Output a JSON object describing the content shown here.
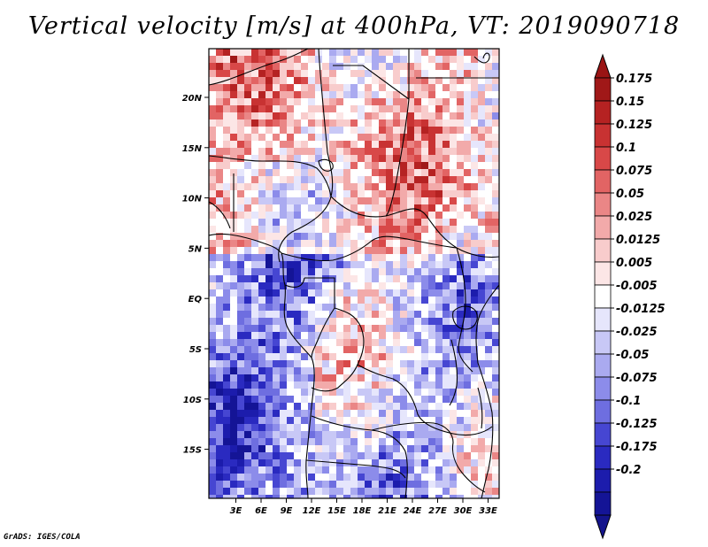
{
  "chart_data": {
    "type": "heatmap",
    "title": "Vertical velocity [m/s] at 400hPa, VT: 2019090718",
    "variable": "Vertical velocity",
    "units": "m/s",
    "level": "400hPa",
    "valid_time": "2019090718",
    "x_ticks": [
      "3E",
      "6E",
      "9E",
      "12E",
      "15E",
      "18E",
      "21E",
      "24E",
      "27E",
      "30E",
      "33E"
    ],
    "y_ticks": [
      "20N",
      "15N",
      "10N",
      "5N",
      "EQ",
      "5S",
      "10S",
      "15S"
    ],
    "colorbar": {
      "labels": [
        "0.175",
        "0.15",
        "0.125",
        "0.1",
        "0.075",
        "0.05",
        "0.025",
        "0.0125",
        "0.005",
        "-0.005",
        "-0.0125",
        "-0.025",
        "-0.05",
        "-0.075",
        "-0.1",
        "-0.125",
        "-0.175",
        "-0.2"
      ],
      "colors": [
        "#a01818",
        "#b52222",
        "#c83232",
        "#d84848",
        "#e26464",
        "#ea8686",
        "#f2aaaa",
        "#f8cccc",
        "#fce6e6",
        "#ffffff",
        "#e6e6fc",
        "#c8c8f6",
        "#aaaaf0",
        "#8c8cea",
        "#6e6ee0",
        "#4646d2",
        "#2a2ac0",
        "#1c1cac",
        "#141496"
      ],
      "top_arrow_color": "#9a1414",
      "bottom_arrow_color": "#14148c"
    }
  },
  "footer": {
    "credit": "GrADS: IGES/COLA"
  }
}
